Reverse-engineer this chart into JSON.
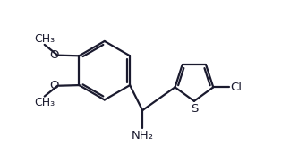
{
  "background": "#ffffff",
  "line_color": "#1a1a2e",
  "line_width": 1.6,
  "dbo": 0.055,
  "font_size_label": 9.5,
  "figsize": [
    3.24,
    1.73
  ],
  "dpi": 100,
  "xlim": [
    0.0,
    8.5
  ],
  "ylim": [
    0.3,
    5.8
  ]
}
